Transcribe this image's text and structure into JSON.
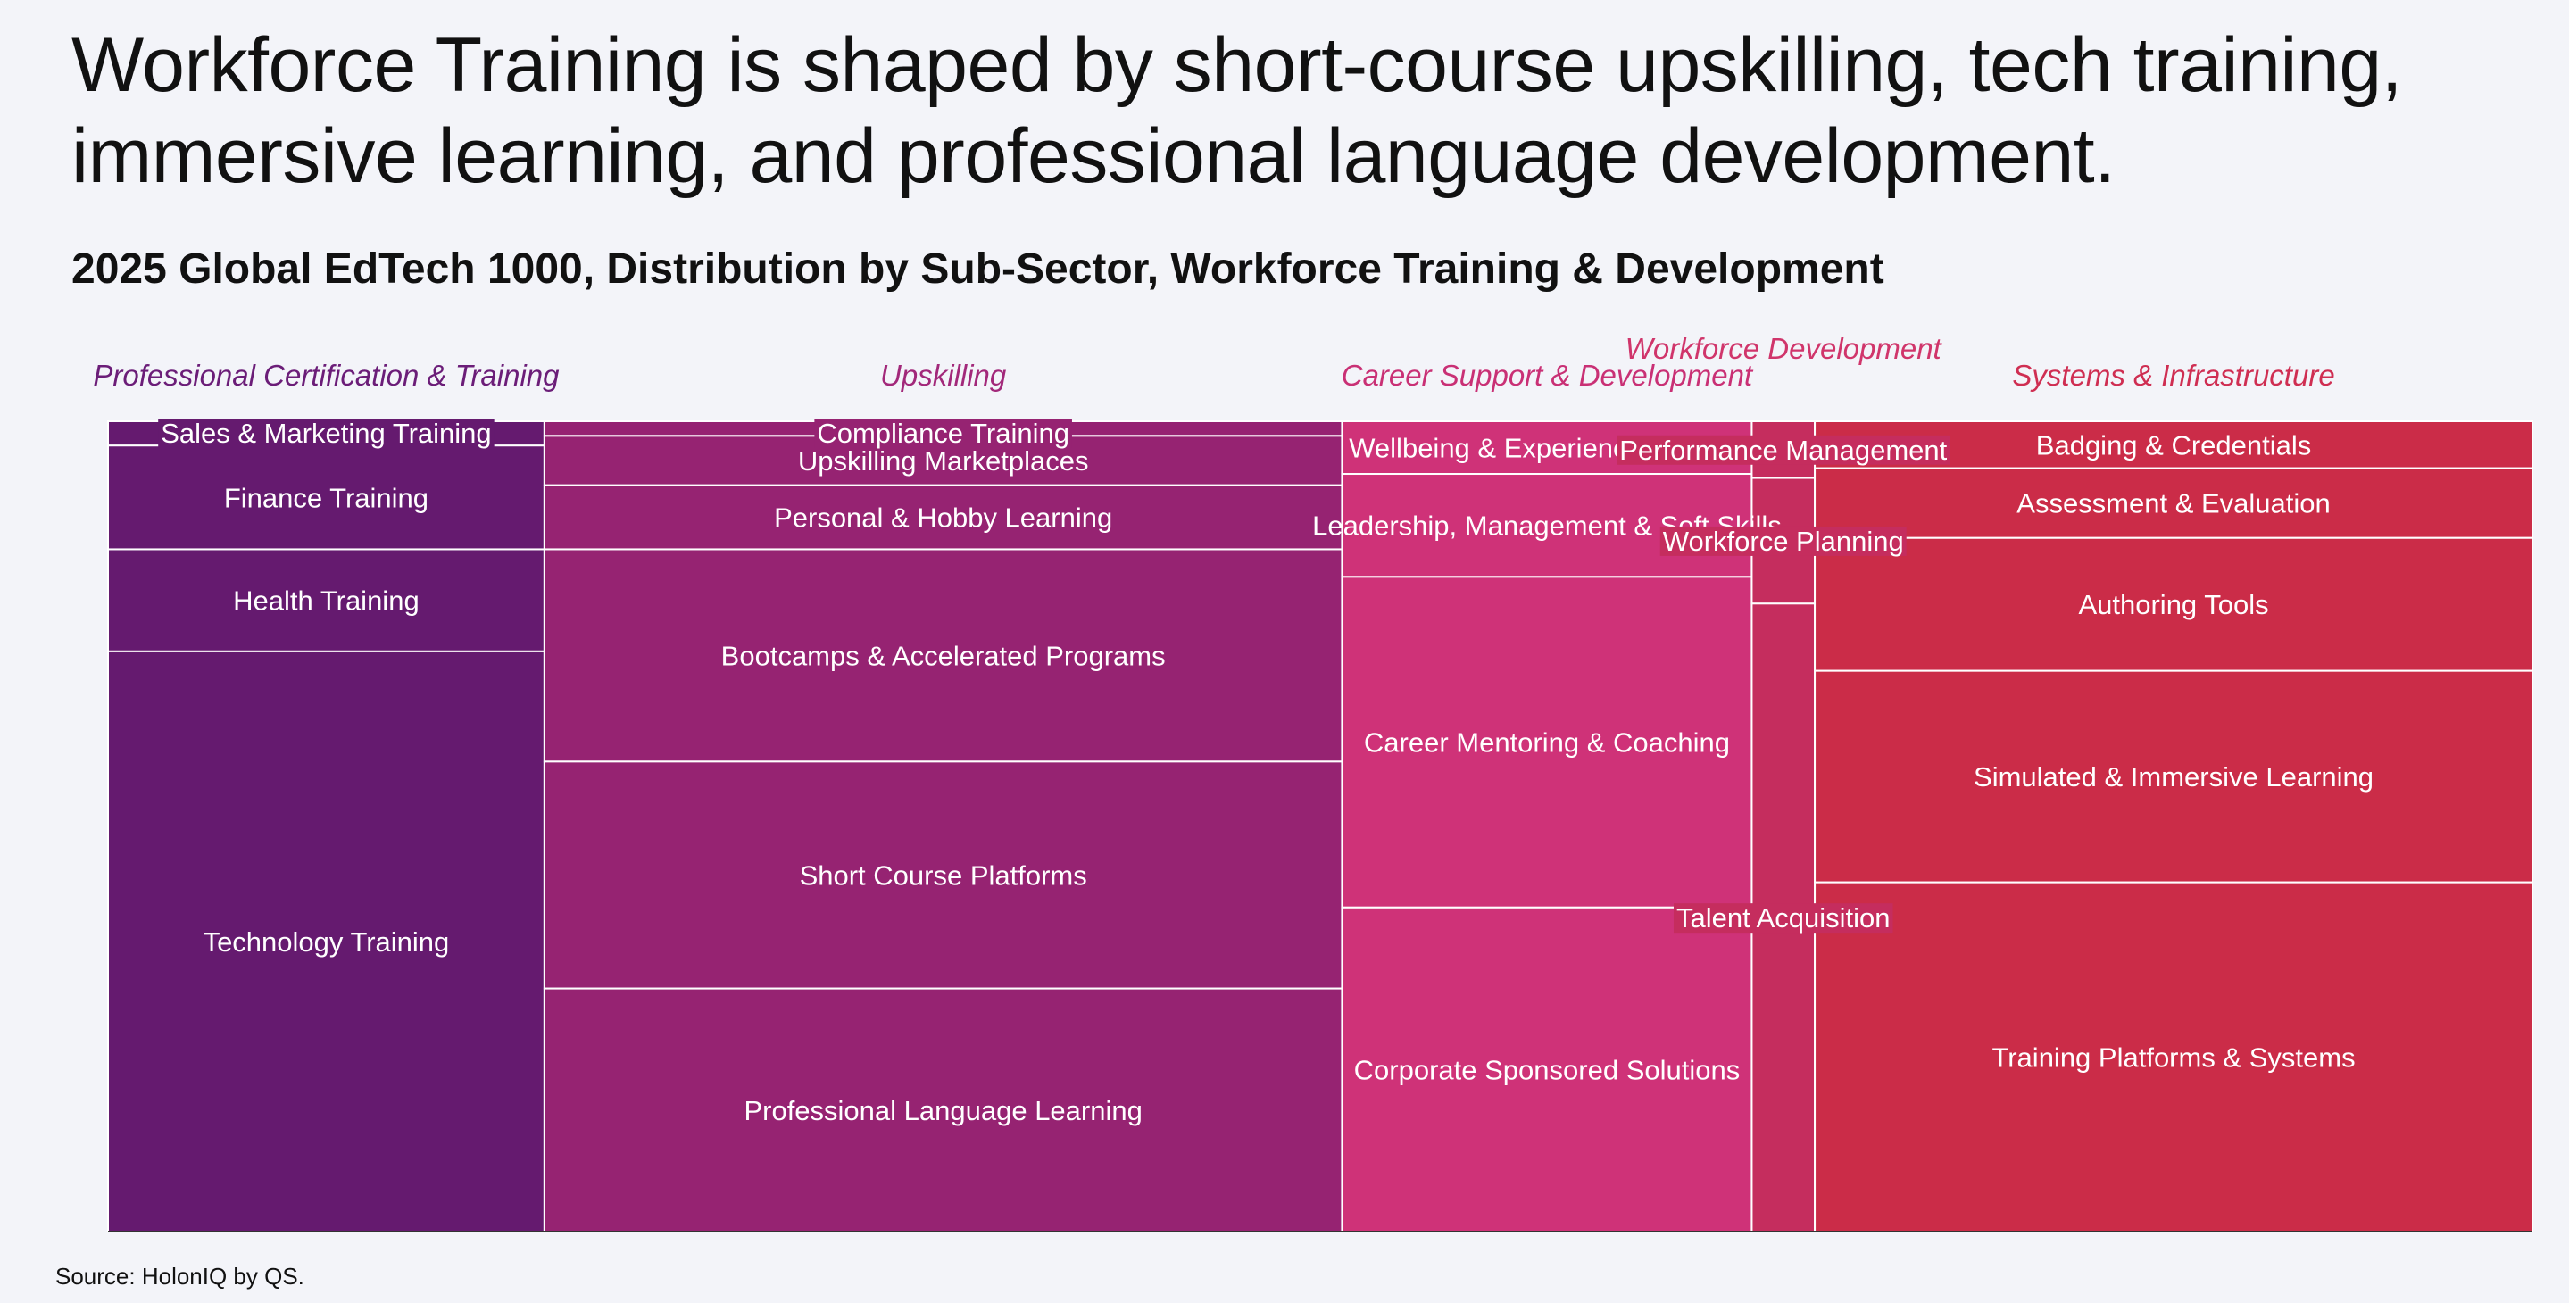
{
  "title": "Workforce Training is shaped by short-course upskilling, tech training, immersive learning, and professional language development.",
  "subtitle": "2025 Global EdTech 1000, Distribution by Sub-Sector, Workforce Training & Development",
  "source": "Source: HolonIQ by QS.",
  "chart_data": {
    "type": "marimekko",
    "title": "2025 Global EdTech 1000, Distribution by Sub-Sector, Workforce Training & Development",
    "note": "Column widths = share of companies per category; segment heights = share of sub-sector within category (percent).",
    "categories": [
      {
        "name": "Professional Certification & Training",
        "share": 18.0,
        "color": "#651a6f",
        "label_color": "#6b1d78",
        "segments": [
          {
            "name": "Sales & Marketing Training",
            "share": 3.0
          },
          {
            "name": "Finance Training",
            "share": 12.8
          },
          {
            "name": "Health Training",
            "share": 12.6
          },
          {
            "name": "Technology Training",
            "share": 71.6
          }
        ]
      },
      {
        "name": "Upskilling",
        "share": 32.9,
        "color": "#962372",
        "label_color": "#a2287a",
        "segments": [
          {
            "name": "Compliance Training",
            "share": 1.8
          },
          {
            "name": "Upskilling Marketplaces",
            "share": 6.1
          },
          {
            "name": "Personal & Hobby Learning",
            "share": 7.9
          },
          {
            "name": "Bootcamps & Accelerated Programs",
            "share": 26.2
          },
          {
            "name": "Short Course Platforms",
            "share": 28.0
          },
          {
            "name": "Professional Language Learning",
            "share": 30.0
          }
        ]
      },
      {
        "name": "Career Support & Development",
        "share": 16.9,
        "color": "#cf3278",
        "label_color": "#c93075",
        "segments": [
          {
            "name": "Wellbeing & Experience at Work",
            "share": 6.5
          },
          {
            "name": "Leadership, Management & Soft Skills",
            "share": 12.7
          },
          {
            "name": "Career Mentoring & Coaching",
            "share": 40.8
          },
          {
            "name": "Corporate Sponsored Solutions",
            "share": 40.0
          }
        ]
      },
      {
        "name": "Workforce Development",
        "share": 2.6,
        "color": "#c52d5e",
        "label_color": "#d0356b",
        "segments": [
          {
            "name": "Performance Management",
            "share": 7.0
          },
          {
            "name": "Workforce Planning",
            "share": 15.5
          },
          {
            "name": "Talent Acquisition",
            "share": 77.5
          }
        ]
      },
      {
        "name": "Systems & Infrastructure",
        "share": 29.6,
        "color": "#cb2c48",
        "label_color": "#cf2e52",
        "segments": [
          {
            "name": "Badging & Credentials",
            "share": 5.8
          },
          {
            "name": "Assessment & Evaluation",
            "share": 8.6
          },
          {
            "name": "Authoring Tools",
            "share": 16.4
          },
          {
            "name": "Simulated & Immersive Learning",
            "share": 26.1
          },
          {
            "name": "Training Platforms & Systems",
            "share": 43.1
          }
        ]
      }
    ]
  }
}
